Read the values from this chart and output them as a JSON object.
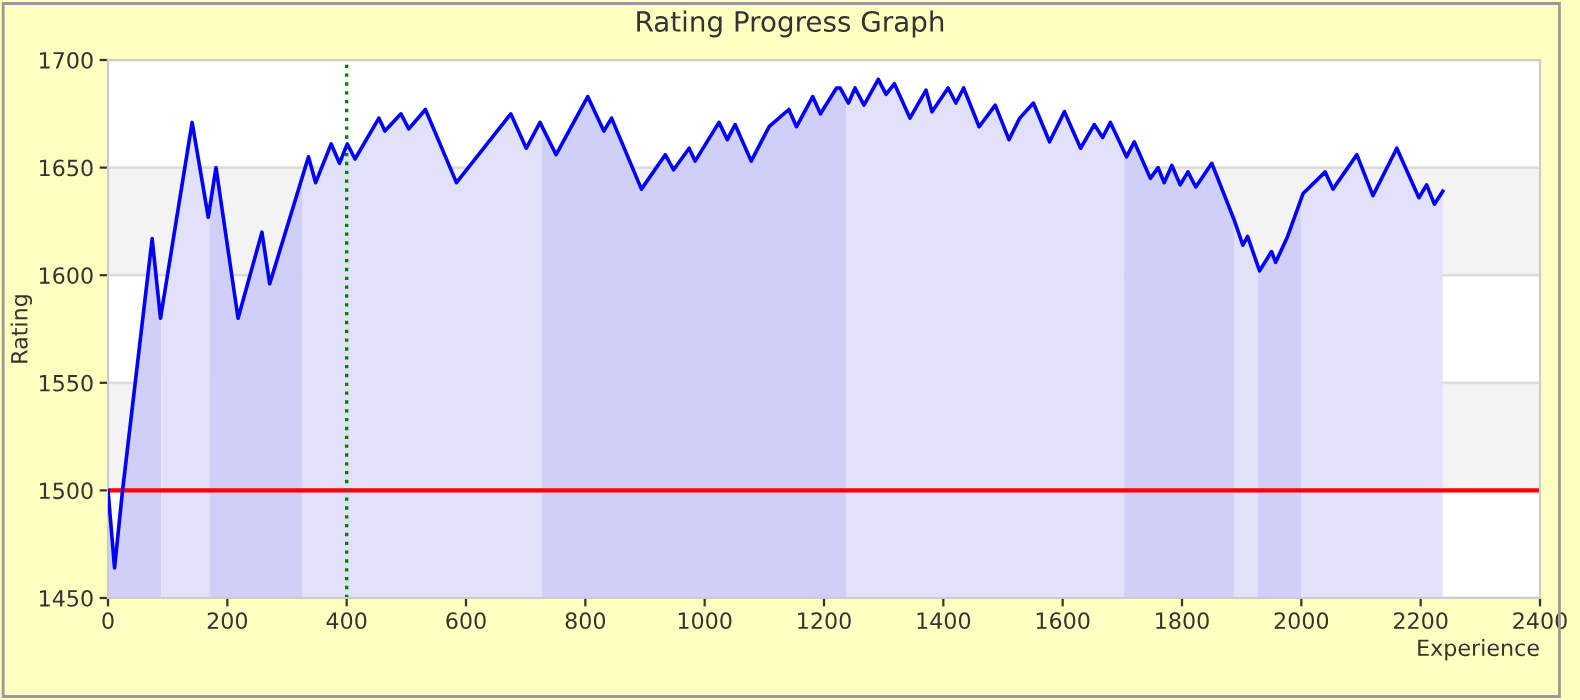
{
  "chart_data": {
    "type": "line",
    "title": "Rating Progress Graph",
    "xlabel": "Experience",
    "ylabel": "Rating",
    "series": [
      {
        "color": "#0000ff",
        "x": [
          0,
          11,
          24,
          74,
          88,
          141,
          168,
          181,
          218,
          258,
          271,
          336,
          348,
          374,
          388,
          401,
          414,
          454,
          464,
          491,
          504,
          532,
          584,
          675,
          701,
          724,
          751,
          804,
          831,
          844,
          894,
          934,
          948,
          974,
          984,
          1024,
          1038,
          1051,
          1078,
          1108,
          1141,
          1154,
          1181,
          1194,
          1221,
          1227,
          1241,
          1252,
          1267,
          1291,
          1304,
          1318,
          1344,
          1371,
          1381,
          1408,
          1421,
          1434,
          1460,
          1487,
          1510,
          1528,
          1551,
          1578,
          1603,
          1630,
          1653,
          1667,
          1680,
          1707,
          1720,
          1747,
          1760,
          1770,
          1783,
          1797,
          1810,
          1823,
          1850,
          1887,
          1902,
          1910,
          1930,
          1950,
          1957,
          1977,
          2003,
          2040,
          2053,
          2093,
          2120,
          2160,
          2197,
          2210,
          2223,
          2237
        ],
        "values": [
          1500,
          1464,
          1499,
          1617,
          1580,
          1671,
          1627,
          1650,
          1580,
          1620,
          1596,
          1655,
          1643,
          1661,
          1652,
          1661,
          1654,
          1673,
          1667,
          1675,
          1668,
          1677,
          1643,
          1675,
          1659,
          1671,
          1656,
          1683,
          1667,
          1673,
          1640,
          1656,
          1649,
          1659,
          1653,
          1671,
          1663,
          1670,
          1653,
          1669,
          1677,
          1669,
          1683,
          1675,
          1687,
          1687,
          1680,
          1687,
          1679,
          1691,
          1684,
          1689,
          1673,
          1686,
          1676,
          1687,
          1680,
          1687,
          1669,
          1679,
          1663,
          1673,
          1680,
          1662,
          1676,
          1659,
          1670,
          1664,
          1671,
          1655,
          1662,
          1645,
          1650,
          1643,
          1651,
          1642,
          1648,
          1641,
          1652,
          1626,
          1614,
          1618,
          1602,
          1611,
          1606,
          1618,
          1638,
          1648,
          1640,
          1656,
          1637,
          1659,
          1636,
          1642,
          1633,
          1639
        ]
      }
    ],
    "xlim": [
      0,
      2400
    ],
    "xticks": [
      0,
      200,
      400,
      600,
      800,
      1000,
      1200,
      1400,
      1600,
      1800,
      2000,
      2200,
      2400
    ],
    "ylim": [
      1450,
      1700
    ],
    "yticks": [
      1450,
      1500,
      1550,
      1600,
      1650,
      1700
    ],
    "grid": "y",
    "legend": false,
    "marker": "none",
    "line_style": "solid",
    "ref_lines": [
      {
        "axis": "y",
        "value": 1500,
        "color": "#ff0000",
        "line_style": "solid"
      },
      {
        "axis": "x",
        "value": 400,
        "color": "#008000",
        "line_style": "dotted"
      }
    ],
    "bands": [
      {
        "axis": "y",
        "from": 1500,
        "to": 1550,
        "color": "#f3f3f3"
      },
      {
        "axis": "y",
        "from": 1600,
        "to": 1650,
        "color": "#f3f3f3"
      },
      {
        "axis": "x",
        "from": 0,
        "to": 89,
        "color": "#cfcff8"
      },
      {
        "axis": "x",
        "from": 89,
        "to": 170,
        "color": "#e1e1fa"
      },
      {
        "axis": "x",
        "from": 170,
        "to": 326,
        "color": "#cfcff8"
      },
      {
        "axis": "x",
        "from": 326,
        "to": 727,
        "color": "#e1e1fa"
      },
      {
        "axis": "x",
        "from": 727,
        "to": 1237,
        "color": "#cfcff8"
      },
      {
        "axis": "x",
        "from": 1237,
        "to": 1703,
        "color": "#e1e1fa"
      },
      {
        "axis": "x",
        "from": 1703,
        "to": 1887,
        "color": "#cfcff8"
      },
      {
        "axis": "x",
        "from": 1887,
        "to": 1927,
        "color": "#e1e1fa"
      },
      {
        "axis": "x",
        "from": 1927,
        "to": 2000,
        "color": "#cfcff8"
      },
      {
        "axis": "x",
        "from": 2000,
        "to": 2237,
        "color": "#e1e1fa"
      }
    ]
  }
}
